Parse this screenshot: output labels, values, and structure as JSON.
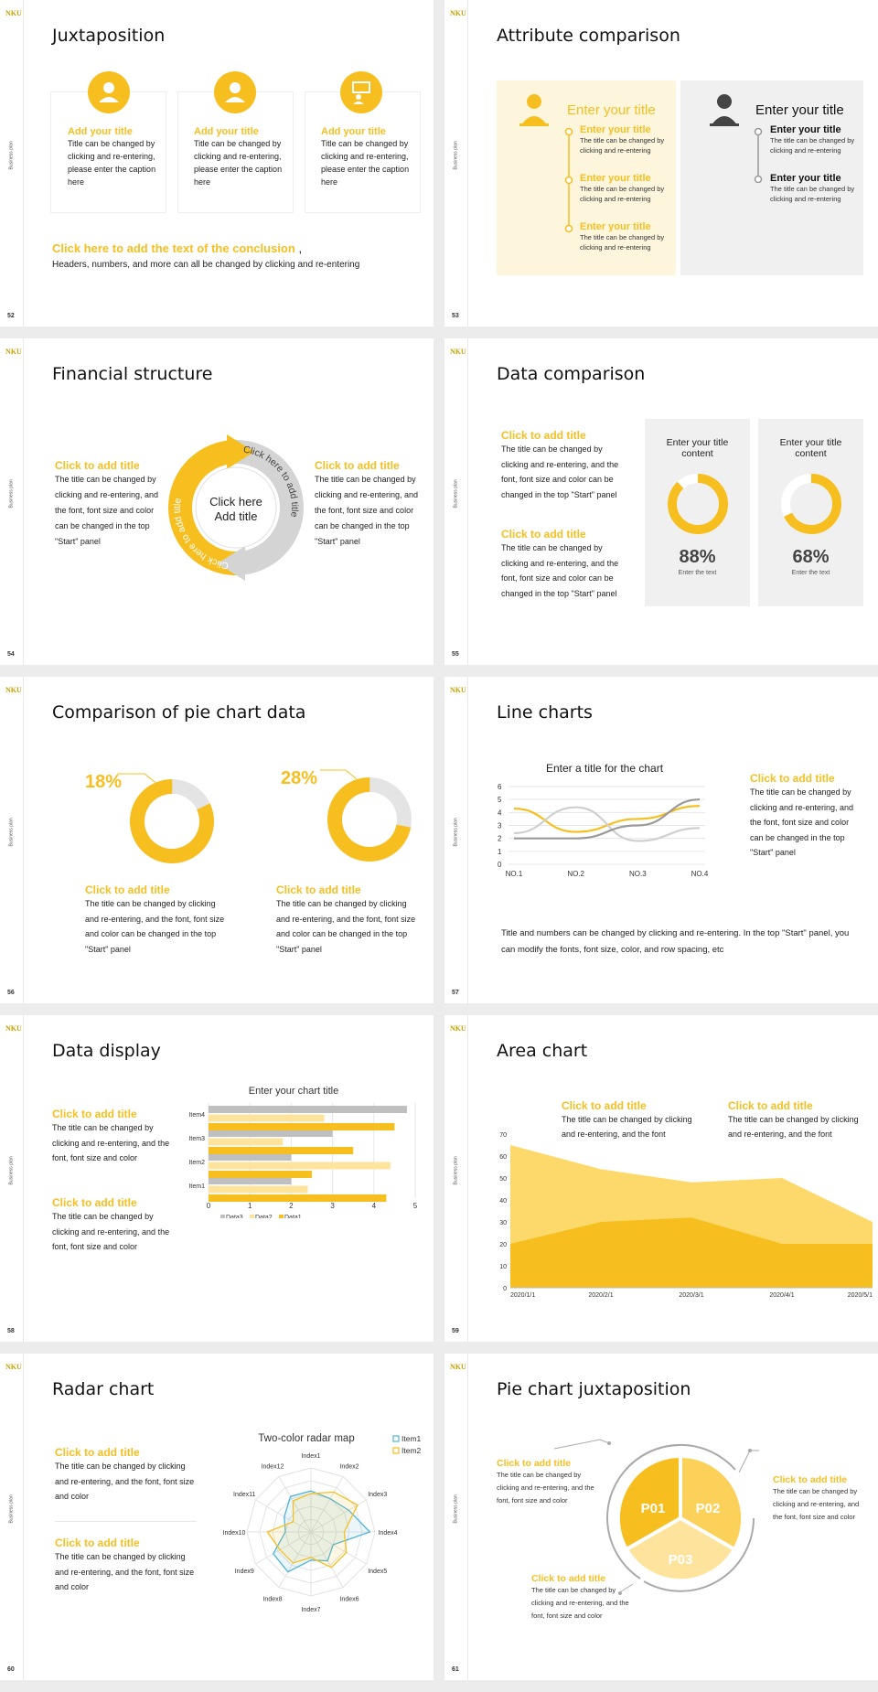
{
  "common": {
    "logo": "NKU",
    "side_label": "Business plan"
  },
  "slides": [
    {
      "num": "52",
      "title": "Juxtaposition",
      "cards": [
        {
          "title": "Add your title",
          "text": "Title can be changed by clicking and re-entering, please enter the caption here"
        },
        {
          "title": "Add your title",
          "text": "Title can be changed by clicking and re-entering, please enter the caption here"
        },
        {
          "title": "Add your title",
          "text": "Title can be changed by clicking and re-entering, please enter the caption here"
        }
      ],
      "conclusion": "Click here to add the text of the conclusion",
      "comma": ",",
      "conclusion_sub": "Headers, numbers, and more can all be changed by clicking and re-entering"
    },
    {
      "num": "53",
      "title": "Attribute comparison",
      "left": {
        "heading": "Enter your title",
        "items": [
          {
            "title": "Enter your title",
            "text": "The title can be changed by clicking and re-entering"
          },
          {
            "title": "Enter your title",
            "text": "The title can be changed by clicking and re-entering"
          },
          {
            "title": "Enter your title",
            "text": "The title can be changed by clicking and re-entering"
          }
        ]
      },
      "right": {
        "heading": "Enter your title",
        "items": [
          {
            "title": "Enter your title",
            "text": "The title can be changed by clicking and re-entering"
          },
          {
            "title": "Enter your title",
            "text": "The title can be changed by clicking and re-entering"
          }
        ]
      }
    },
    {
      "num": "54",
      "title": "Financial structure",
      "left": {
        "title": "Click to add title",
        "text": "The title can be changed by clicking and re-entering, and the font, font size and color can be changed in the top \"Start\" panel"
      },
      "right": {
        "title": "Click to add title",
        "text": "The title can be changed by clicking and re-entering, and the font, font size and color can be changed in the top \"Start\" panel"
      },
      "center_line1": "Click here",
      "center_line2": "Add title",
      "arc_text_gray": "Click here to add title",
      "arc_text_yellow": "Click here to add title"
    },
    {
      "num": "55",
      "title": "Data comparison",
      "blocks": [
        {
          "title": "Click to add title",
          "text": "The title can be changed by clicking and re-entering, and the font, font size and color can be changed in the top \"Start\" panel"
        },
        {
          "title": "Click to add title",
          "text": "The title can be changed by clicking and re-entering, and the font, font size and color can be changed in the top \"Start\" panel"
        }
      ],
      "panels": [
        {
          "heading": "Enter your title content",
          "value_label": "88%",
          "value": 88,
          "sub": "Enter the text"
        },
        {
          "heading": "Enter your title content",
          "value_label": "68%",
          "value": 68,
          "sub": "Enter the text"
        }
      ]
    },
    {
      "num": "56",
      "title": "Comparison of pie chart data",
      "pies": [
        {
          "pct_label": "18%",
          "value": 18,
          "title": "Click to add title",
          "text": "The title can be changed by clicking and re-entering, and the font, font size and color can be changed in the top \"Start\" panel"
        },
        {
          "pct_label": "28%",
          "value": 28,
          "title": "Click to add title",
          "text": "The title can be changed by clicking and re-entering, and the font, font size and color can be changed in the top \"Start\" panel"
        }
      ]
    },
    {
      "num": "57",
      "title": "Line charts",
      "side_title": "Click to add title",
      "side_text": "The title can be changed by clicking and re-entering, and the font, font size and color can be changed in the top \"Start\" panel",
      "bottom_text": "Title and numbers can be changed by clicking and re-entering. In the top \"Start\" panel, you can modify the fonts, font size, color, and row spacing, etc"
    },
    {
      "num": "58",
      "title": "Data display",
      "blocks": [
        {
          "title": "Click to add title",
          "text": "The title can be changed by clicking and re-entering, and the font, font size and color"
        },
        {
          "title": "Click to add title",
          "text": "The title can be changed by clicking and re-entering, and the font, font size and color"
        }
      ]
    },
    {
      "num": "59",
      "title": "Area chart",
      "blocks": [
        {
          "title": "Click to add title",
          "text": "The title can be changed by clicking and re-entering, and the font"
        },
        {
          "title": "Click to add title",
          "text": "The title can be changed by clicking and re-entering, and the font"
        }
      ]
    },
    {
      "num": "60",
      "title": "Radar chart",
      "blocks": [
        {
          "title": "Click to add title",
          "text": "The title can be changed by clicking and re-entering, and the font, font size and color"
        },
        {
          "title": "Click to add title",
          "text": "The title can be changed by clicking and re-entering, and the font, font size and color"
        }
      ]
    },
    {
      "num": "61",
      "title": "Pie chart juxtaposition",
      "blocks": [
        {
          "title": "Click to add title",
          "text": "The title can be changed by clicking and re-entering, and the font, font size and color"
        },
        {
          "title": "Click to add title",
          "text": "The title can be changed by clicking and re-entering, and the font, font size and color"
        },
        {
          "title": "Click to add title",
          "text": "The title can be changed by clicking and re-entering, and the font, font size and color"
        }
      ],
      "segments": [
        "P01",
        "P02",
        "P03"
      ]
    }
  ],
  "chart_data": [
    {
      "type": "line",
      "title": "Enter a title for the chart",
      "categories": [
        "NO.1",
        "NO.2",
        "NO.3",
        "NO.4"
      ],
      "ylim": [
        0,
        6
      ],
      "yticks": [
        0,
        1,
        2,
        3,
        4,
        5,
        6
      ],
      "series": [
        {
          "values": [
            4.3,
            2.5,
            3.5,
            4.5
          ],
          "color": "#f6bf1f"
        },
        {
          "values": [
            2.4,
            4.4,
            1.8,
            2.8
          ],
          "color": "#cfcfcf"
        },
        {
          "values": [
            2.0,
            2.0,
            3.0,
            5.0
          ],
          "color": "#999999"
        }
      ],
      "grid": true
    },
    {
      "type": "bar",
      "orientation": "horizontal",
      "title": "Enter your chart title",
      "categories": [
        "Item1",
        "Item2",
        "Item3",
        "Item4"
      ],
      "xlim": [
        0,
        5
      ],
      "xticks": [
        0,
        1,
        2,
        3,
        4,
        5
      ],
      "series": [
        {
          "name": "Data3",
          "values": [
            2.0,
            2.0,
            3.0,
            4.8
          ],
          "color": "#bfbfbf"
        },
        {
          "name": "Data2",
          "values": [
            2.4,
            4.4,
            1.8,
            2.8
          ],
          "color": "#fde39b"
        },
        {
          "name": "Data1",
          "values": [
            4.3,
            2.5,
            3.5,
            4.5
          ],
          "color": "#f6bf1f"
        }
      ],
      "legend": "bottom"
    },
    {
      "type": "area",
      "categories": [
        "2020/1/1",
        "2020/2/1",
        "2020/3/1",
        "2020/4/1",
        "2020/5/1"
      ],
      "ylim": [
        0,
        70
      ],
      "yticks": [
        0,
        10,
        20,
        30,
        40,
        50,
        60,
        70
      ],
      "series": [
        {
          "values": [
            65,
            54,
            48,
            50,
            30
          ],
          "color": "#fcd96a"
        },
        {
          "values": [
            20,
            30,
            32,
            20,
            20
          ],
          "color": "#f6bf1f"
        }
      ]
    },
    {
      "type": "radar",
      "title": "Two-color radar map",
      "categories": [
        "Index1",
        "Index2",
        "Index3",
        "Index4",
        "Index5",
        "Index6",
        "Index7",
        "Index8",
        "Index9",
        "Index10",
        "Index11",
        "Index12"
      ],
      "rmax": 5,
      "series": [
        {
          "name": "Item1",
          "values": [
            3.2,
            3.0,
            3.4,
            4.6,
            2.0,
            2.6,
            2.2,
            3.6,
            3.4,
            2.0,
            2.4,
            3.2
          ],
          "color": "#4fb3d9"
        },
        {
          "name": "Item2",
          "values": [
            3.0,
            3.6,
            4.2,
            2.6,
            3.2,
            3.2,
            2.0,
            2.8,
            2.8,
            3.4,
            1.6,
            2.8
          ],
          "color": "#f6bf1f"
        }
      ],
      "legend": "top-right"
    }
  ]
}
